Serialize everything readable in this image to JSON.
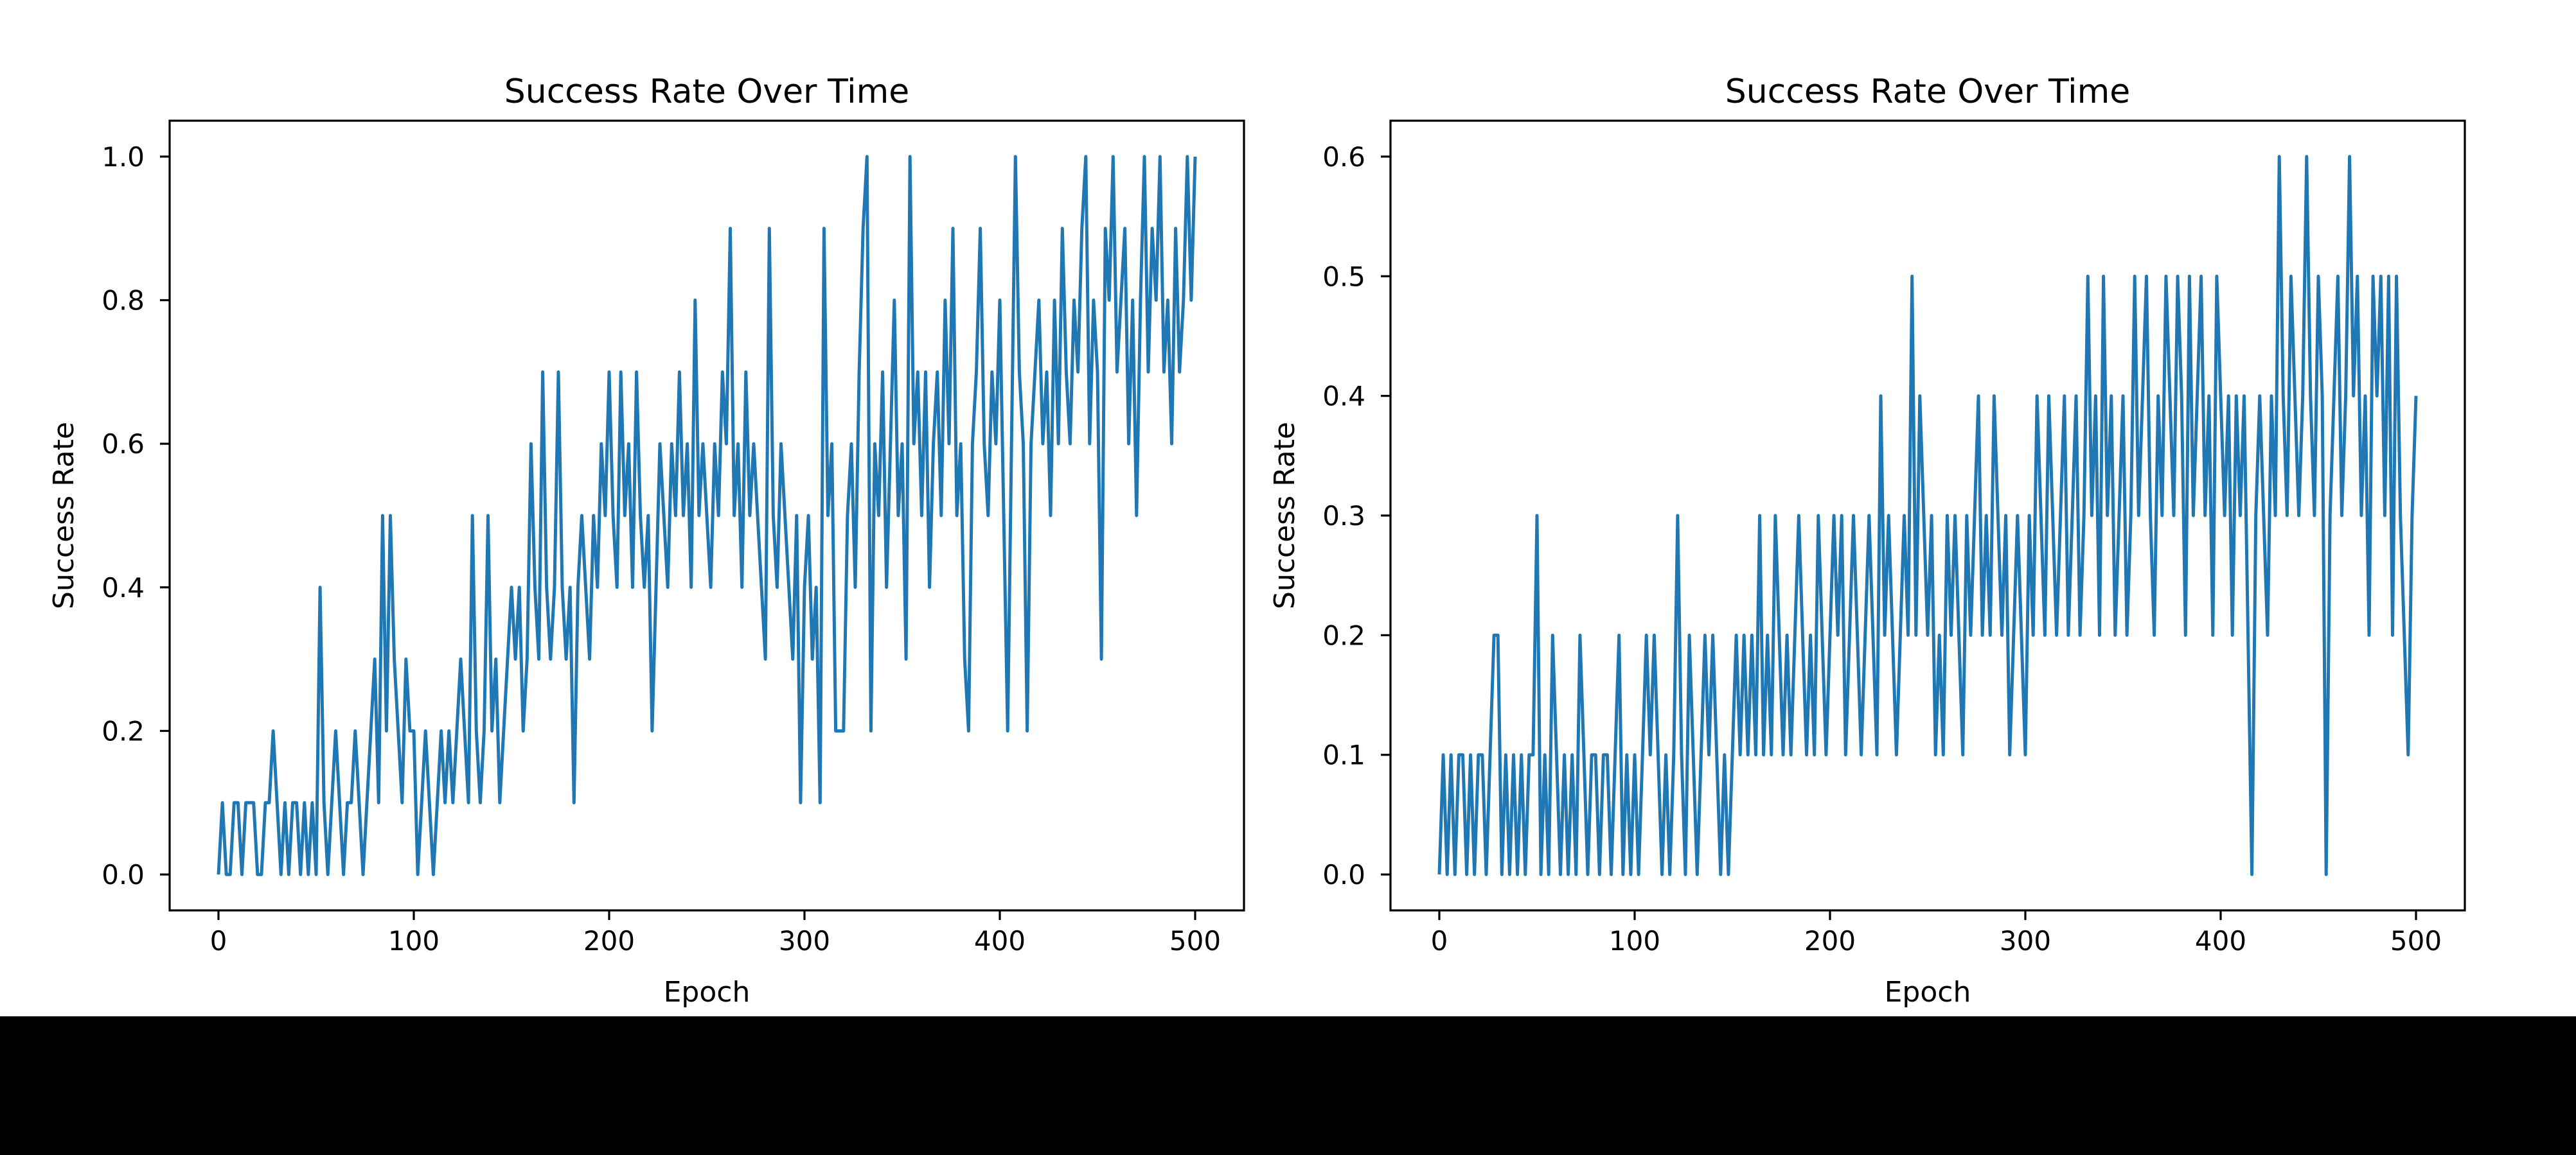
{
  "figure": {
    "background_color": "#ffffff",
    "letterbox_color": "#000000",
    "line_color": "#1f77b4"
  },
  "chart_data": [
    {
      "type": "line",
      "title": "Success Rate Over Time",
      "xlabel": "Epoch",
      "ylabel": "Success Rate",
      "x_ticks": [
        0,
        100,
        200,
        300,
        400,
        500
      ],
      "y_tick_labels": [
        "0.0",
        "0.2",
        "0.4",
        "0.6",
        "0.8",
        "1.0"
      ],
      "xlim": [
        -25,
        525
      ],
      "ylim": [
        -0.05,
        1.05
      ],
      "grid": false,
      "legend_position": "none",
      "line_color": "#1f77b4",
      "epoch_step": 2,
      "value_unit": 0.1,
      "values_tenths": [
        0,
        1,
        0,
        0,
        1,
        1,
        0,
        1,
        1,
        1,
        0,
        0,
        1,
        1,
        2,
        1,
        0,
        1,
        0,
        1,
        1,
        0,
        1,
        0,
        1,
        0,
        4,
        1,
        0,
        1,
        2,
        1,
        0,
        1,
        1,
        2,
        1,
        0,
        1,
        2,
        3,
        1,
        5,
        2,
        5,
        3,
        2,
        1,
        3,
        2,
        2,
        0,
        1,
        2,
        1,
        0,
        1,
        2,
        1,
        2,
        1,
        2,
        3,
        2,
        1,
        5,
        2,
        1,
        2,
        5,
        2,
        3,
        1,
        2,
        3,
        4,
        3,
        4,
        2,
        3,
        6,
        4,
        3,
        7,
        4,
        3,
        4,
        7,
        4,
        3,
        4,
        1,
        4,
        5,
        4,
        3,
        5,
        4,
        6,
        5,
        7,
        5,
        4,
        7,
        5,
        6,
        4,
        7,
        5,
        4,
        5,
        2,
        4,
        6,
        5,
        4,
        6,
        5,
        7,
        5,
        6,
        4,
        8,
        5,
        6,
        5,
        4,
        6,
        5,
        7,
        6,
        9,
        5,
        6,
        4,
        7,
        5,
        6,
        5,
        4,
        3,
        9,
        5,
        4,
        6,
        5,
        4,
        3,
        5,
        1,
        4,
        5,
        3,
        4,
        1,
        9,
        5,
        6,
        2,
        2,
        2,
        5,
        6,
        4,
        7,
        9,
        10,
        2,
        6,
        5,
        7,
        4,
        6,
        8,
        5,
        6,
        3,
        10,
        6,
        7,
        5,
        7,
        4,
        6,
        7,
        5,
        8,
        6,
        9,
        5,
        6,
        3,
        2,
        6,
        7,
        9,
        6,
        5,
        7,
        6,
        8,
        5,
        2,
        6,
        10,
        7,
        6,
        2,
        6,
        7,
        8,
        6,
        7,
        5,
        8,
        6,
        9,
        7,
        6,
        8,
        7,
        9,
        10,
        6,
        8,
        7,
        3,
        9,
        8,
        10,
        7,
        8,
        9,
        6,
        8,
        5,
        8,
        10,
        7,
        9,
        8,
        10,
        7,
        8,
        6,
        9,
        7,
        8,
        10,
        8,
        10
      ]
    },
    {
      "type": "line",
      "title": "Success Rate Over Time",
      "xlabel": "Epoch",
      "ylabel": "Success Rate",
      "x_ticks": [
        0,
        100,
        200,
        300,
        400,
        500
      ],
      "y_tick_labels": [
        "0.0",
        "0.1",
        "0.2",
        "0.3",
        "0.4",
        "0.5",
        "0.6"
      ],
      "xlim": [
        -25,
        525
      ],
      "ylim": [
        -0.03,
        0.63
      ],
      "grid": false,
      "legend_position": "none",
      "line_color": "#1f77b4",
      "epoch_step": 2,
      "value_unit": 0.1,
      "values_tenths": [
        0,
        1,
        0,
        1,
        0,
        1,
        1,
        0,
        1,
        0,
        1,
        1,
        0,
        1,
        2,
        2,
        0,
        1,
        0,
        1,
        0,
        1,
        0,
        1,
        1,
        3,
        0,
        1,
        0,
        2,
        1,
        0,
        1,
        0,
        1,
        0,
        2,
        1,
        0,
        1,
        1,
        0,
        1,
        1,
        0,
        1,
        2,
        0,
        1,
        0,
        1,
        0,
        1,
        2,
        1,
        2,
        1,
        0,
        1,
        0,
        1,
        3,
        1,
        0,
        2,
        1,
        0,
        1,
        2,
        1,
        2,
        1,
        0,
        1,
        0,
        1,
        2,
        1,
        2,
        1,
        2,
        1,
        3,
        1,
        2,
        1,
        3,
        2,
        1,
        2,
        1,
        2,
        3,
        2,
        1,
        2,
        1,
        3,
        2,
        1,
        2,
        3,
        2,
        3,
        1,
        2,
        3,
        2,
        1,
        2,
        3,
        2,
        1,
        4,
        2,
        3,
        2,
        1,
        2,
        3,
        2,
        5,
        2,
        4,
        3,
        2,
        3,
        1,
        2,
        1,
        3,
        2,
        3,
        2,
        1,
        3,
        2,
        3,
        4,
        2,
        3,
        2,
        4,
        3,
        2,
        3,
        1,
        2,
        3,
        2,
        1,
        3,
        2,
        4,
        3,
        2,
        4,
        3,
        2,
        3,
        4,
        2,
        3,
        4,
        2,
        3,
        5,
        3,
        4,
        2,
        5,
        3,
        4,
        2,
        3,
        4,
        2,
        3,
        5,
        3,
        4,
        5,
        3,
        2,
        4,
        3,
        5,
        4,
        3,
        5,
        4,
        2,
        5,
        3,
        4,
        5,
        3,
        4,
        2,
        5,
        4,
        3,
        4,
        2,
        4,
        3,
        4,
        2,
        0,
        3,
        4,
        3,
        2,
        4,
        3,
        6,
        4,
        3,
        5,
        4,
        3,
        4,
        6,
        4,
        3,
        5,
        4,
        0,
        3,
        4,
        5,
        3,
        4,
        6,
        4,
        5,
        3,
        4,
        2,
        5,
        4,
        5,
        3,
        5,
        2,
        5,
        3,
        2,
        1,
        3,
        4
      ]
    }
  ]
}
